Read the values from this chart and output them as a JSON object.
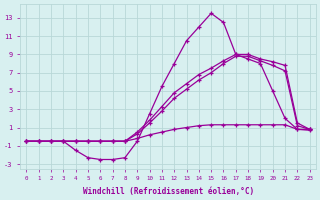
{
  "xlabel": "Windchill (Refroidissement éolien,°C)",
  "background_color": "#d8f0f0",
  "grid_color": "#b8d8d8",
  "line_color": "#990099",
  "xlim": [
    -0.5,
    23.5
  ],
  "ylim": [
    -3.5,
    14.5
  ],
  "yticks": [
    -3,
    -1,
    1,
    3,
    5,
    7,
    9,
    11,
    13
  ],
  "xticks": [
    0,
    1,
    2,
    3,
    4,
    5,
    6,
    7,
    8,
    9,
    10,
    11,
    12,
    13,
    14,
    15,
    16,
    17,
    18,
    19,
    20,
    21,
    22,
    23
  ],
  "lines": [
    {
      "x": [
        0,
        1,
        2,
        3,
        4,
        5,
        6,
        7,
        8,
        9,
        10,
        11,
        12,
        13,
        14,
        15,
        16,
        17,
        18,
        19,
        20,
        21,
        22,
        23
      ],
      "y": [
        -0.5,
        -0.5,
        -0.5,
        -0.5,
        -1.5,
        -2.3,
        -2.5,
        -2.5,
        -2.3,
        -0.5,
        2.5,
        5.5,
        8.0,
        10.5,
        12.0,
        13.5,
        12.5,
        9.0,
        8.5,
        8.0,
        5.0,
        2.0,
        0.8,
        0.7
      ]
    },
    {
      "x": [
        0,
        1,
        2,
        3,
        4,
        5,
        6,
        7,
        8,
        9,
        10,
        11,
        12,
        13,
        14,
        15,
        16,
        17,
        18,
        19,
        20,
        21,
        22,
        23
      ],
      "y": [
        -0.5,
        -0.5,
        -0.5,
        -0.5,
        -0.5,
        -0.5,
        -0.5,
        -0.5,
        -0.5,
        0.5,
        1.8,
        3.3,
        4.8,
        5.8,
        6.8,
        7.5,
        8.3,
        9.0,
        9.0,
        8.5,
        8.2,
        7.8,
        1.5,
        0.8
      ]
    },
    {
      "x": [
        0,
        1,
        2,
        3,
        4,
        5,
        6,
        7,
        8,
        9,
        10,
        11,
        12,
        13,
        14,
        15,
        16,
        17,
        18,
        19,
        20,
        21,
        22,
        23
      ],
      "y": [
        -0.5,
        -0.5,
        -0.5,
        -0.5,
        -0.5,
        -0.5,
        -0.5,
        -0.5,
        -0.5,
        0.3,
        1.5,
        2.8,
        4.2,
        5.2,
        6.2,
        7.0,
        8.0,
        8.8,
        8.8,
        8.3,
        7.8,
        7.2,
        1.2,
        0.8
      ]
    },
    {
      "x": [
        0,
        1,
        2,
        3,
        4,
        5,
        6,
        7,
        8,
        9,
        10,
        11,
        12,
        13,
        14,
        15,
        16,
        17,
        18,
        19,
        20,
        21,
        22,
        23
      ],
      "y": [
        -0.5,
        -0.5,
        -0.5,
        -0.5,
        -0.5,
        -0.5,
        -0.5,
        -0.5,
        -0.5,
        -0.2,
        0.2,
        0.5,
        0.8,
        1.0,
        1.2,
        1.3,
        1.3,
        1.3,
        1.3,
        1.3,
        1.3,
        1.3,
        0.8,
        0.8
      ]
    }
  ]
}
